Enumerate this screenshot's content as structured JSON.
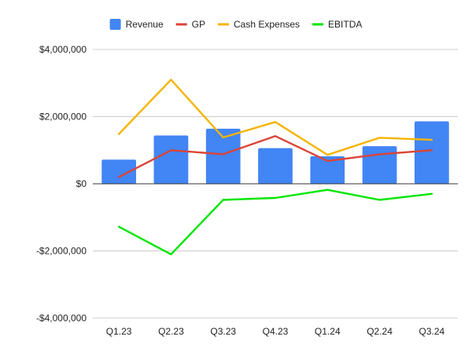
{
  "chart_data": {
    "type": "bar",
    "categories": [
      "Q1.23",
      "Q2.23",
      "Q3.23",
      "Q4.23",
      "Q1.24",
      "Q2.24",
      "Q3.24"
    ],
    "series": [
      {
        "name": "Revenue",
        "type": "bar",
        "color": "#4285f4",
        "values": [
          720000,
          1440000,
          1640000,
          1060000,
          820000,
          1120000,
          1860000
        ]
      },
      {
        "name": "GP",
        "type": "line",
        "color": "#db4437",
        "values": [
          200000,
          1000000,
          880000,
          1420000,
          680000,
          880000,
          1000000
        ]
      },
      {
        "name": "Cash Expenses",
        "type": "line",
        "color": "#f4b400",
        "values": [
          1480000,
          3100000,
          1380000,
          1840000,
          860000,
          1370000,
          1310000
        ]
      },
      {
        "name": "EBITDA",
        "type": "line",
        "color": "#00e600",
        "values": [
          -1280000,
          -2100000,
          -480000,
          -420000,
          -180000,
          -480000,
          -300000
        ]
      }
    ],
    "ylim": [
      -4000000,
      4000000
    ],
    "yticks": [
      -4000000,
      -2000000,
      0,
      2000000,
      4000000
    ],
    "ytick_labels": [
      "-$4,000,000",
      "-$2,000,000",
      "$0",
      "$2,000,000",
      "$4,000,000"
    ],
    "grid": true,
    "legend": "top-center",
    "title": "",
    "xlabel": "",
    "ylabel": ""
  }
}
